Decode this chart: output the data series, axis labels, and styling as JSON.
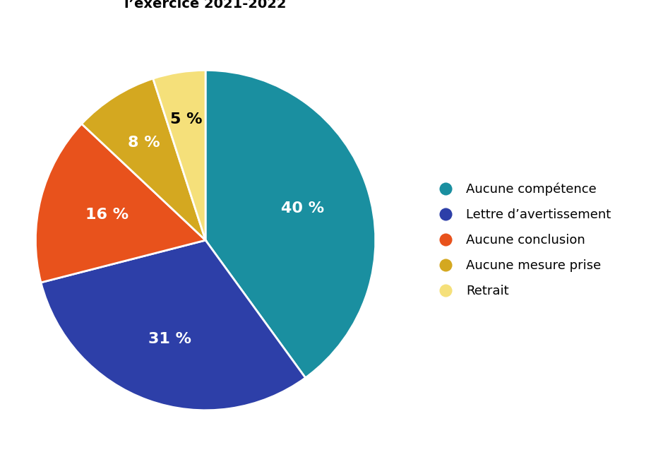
{
  "slices": [
    40,
    31,
    16,
    8,
    5
  ],
  "labels": [
    "40 %",
    "31 %",
    "16 %",
    "8 %",
    "5 %"
  ],
  "colors": [
    "#1a8fa0",
    "#2d3fa8",
    "#e8521c",
    "#d4a820",
    "#f5e07a"
  ],
  "legend_labels": [
    "Aucune compétence",
    "Lettre d’avertissement",
    "Aucune conclusion",
    "Aucune mesure prise",
    "Retrait"
  ],
  "startangle": 90,
  "label_colors": [
    "white",
    "white",
    "white",
    "white",
    "black"
  ],
  "label_fontsize": 16,
  "title_fontsize": 14,
  "background_color": "#ffffff",
  "legend_fontsize": 13
}
